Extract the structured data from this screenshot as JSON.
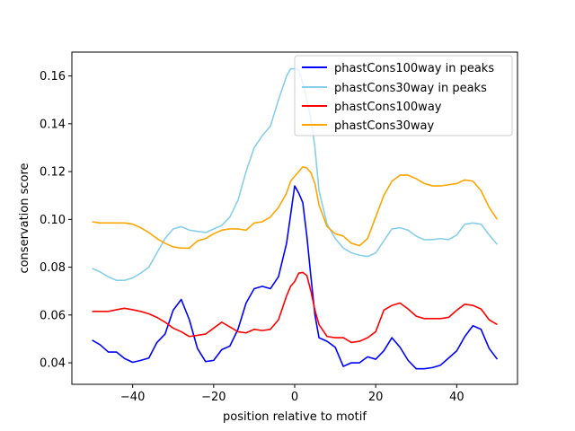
{
  "chart_data": {
    "type": "line",
    "title": "",
    "xlabel": "position relative to motif",
    "ylabel": "conservation score",
    "xlim": [
      -55,
      55
    ],
    "ylim": [
      0.031,
      0.17
    ],
    "grid": false,
    "legend_position": "top-right",
    "x_ticks": [
      -40,
      -20,
      0,
      20,
      40
    ],
    "x_tick_labels": [
      "−40",
      "−20",
      "0",
      "20",
      "40"
    ],
    "y_ticks": [
      0.04,
      0.06,
      0.08,
      0.1,
      0.12,
      0.14,
      0.16
    ],
    "y_tick_labels": [
      "0.04",
      "0.06",
      "0.08",
      "0.10",
      "0.12",
      "0.14",
      "0.16"
    ],
    "x": [
      -50,
      -48,
      -46,
      -44,
      -42,
      -40,
      -38,
      -36,
      -34,
      -32,
      -30,
      -28,
      -26,
      -24,
      -22,
      -20,
      -18,
      -16,
      -14,
      -12,
      -10,
      -8,
      -6,
      -4,
      -2,
      -1,
      0,
      1,
      2,
      3,
      4,
      5,
      6,
      8,
      10,
      12,
      14,
      16,
      18,
      20,
      22,
      24,
      26,
      28,
      30,
      32,
      34,
      36,
      38,
      40,
      42,
      44,
      46,
      48,
      50
    ],
    "series": [
      {
        "name": "phastCons100way in peaks",
        "color": "#0000ff",
        "values": [
          0.0495,
          0.0475,
          0.0445,
          0.0445,
          0.0418,
          0.0402,
          0.041,
          0.042,
          0.0485,
          0.052,
          0.062,
          0.0665,
          0.058,
          0.046,
          0.0405,
          0.041,
          0.0455,
          0.047,
          0.054,
          0.065,
          0.071,
          0.072,
          0.071,
          0.076,
          0.09,
          0.102,
          0.114,
          0.111,
          0.107,
          0.093,
          0.076,
          0.06,
          0.0505,
          0.049,
          0.0465,
          0.0385,
          0.04,
          0.04,
          0.0425,
          0.0415,
          0.045,
          0.0505,
          0.0465,
          0.041,
          0.0375,
          0.0375,
          0.038,
          0.039,
          0.042,
          0.045,
          0.051,
          0.0555,
          0.054,
          0.046,
          0.0415
        ]
      },
      {
        "name": "phastCons30way in peaks",
        "color": "#87ceeb",
        "values": [
          0.0795,
          0.078,
          0.076,
          0.0745,
          0.0745,
          0.0755,
          0.0775,
          0.08,
          0.086,
          0.092,
          0.096,
          0.097,
          0.0955,
          0.095,
          0.0945,
          0.096,
          0.0975,
          0.101,
          0.108,
          0.12,
          0.13,
          0.135,
          0.139,
          0.15,
          0.16,
          0.163,
          0.163,
          0.1625,
          0.157,
          0.15,
          0.142,
          0.13,
          0.112,
          0.098,
          0.092,
          0.088,
          0.086,
          0.085,
          0.0845,
          0.086,
          0.091,
          0.096,
          0.0965,
          0.0955,
          0.093,
          0.0915,
          0.0915,
          0.092,
          0.0915,
          0.0935,
          0.098,
          0.0985,
          0.098,
          0.0935,
          0.0895
        ]
      },
      {
        "name": "phastCons100way",
        "color": "#ff0000",
        "values": [
          0.0615,
          0.0615,
          0.0615,
          0.0622,
          0.0628,
          0.0622,
          0.0615,
          0.0605,
          0.059,
          0.057,
          0.0545,
          0.053,
          0.051,
          0.0515,
          0.052,
          0.0545,
          0.057,
          0.055,
          0.053,
          0.0525,
          0.054,
          0.0535,
          0.054,
          0.058,
          0.068,
          0.072,
          0.074,
          0.0775,
          0.0778,
          0.0765,
          0.07,
          0.062,
          0.056,
          0.051,
          0.0505,
          0.0505,
          0.0485,
          0.049,
          0.0505,
          0.053,
          0.062,
          0.064,
          0.065,
          0.0625,
          0.0595,
          0.0585,
          0.0585,
          0.0585,
          0.059,
          0.062,
          0.0645,
          0.064,
          0.0625,
          0.058,
          0.056
        ]
      },
      {
        "name": "phastCons30way",
        "color": "#ffa500",
        "values": [
          0.099,
          0.0985,
          0.0985,
          0.0985,
          0.0985,
          0.098,
          0.0965,
          0.0945,
          0.092,
          0.09,
          0.0885,
          0.088,
          0.088,
          0.091,
          0.092,
          0.094,
          0.0955,
          0.096,
          0.096,
          0.0955,
          0.0985,
          0.099,
          0.101,
          0.105,
          0.111,
          0.116,
          0.118,
          0.12,
          0.122,
          0.1215,
          0.1195,
          0.115,
          0.106,
          0.097,
          0.094,
          0.093,
          0.09,
          0.089,
          0.092,
          0.101,
          0.11,
          0.116,
          0.1185,
          0.1185,
          0.117,
          0.115,
          0.114,
          0.114,
          0.1145,
          0.115,
          0.1165,
          0.116,
          0.112,
          0.105,
          0.1
        ]
      }
    ]
  }
}
